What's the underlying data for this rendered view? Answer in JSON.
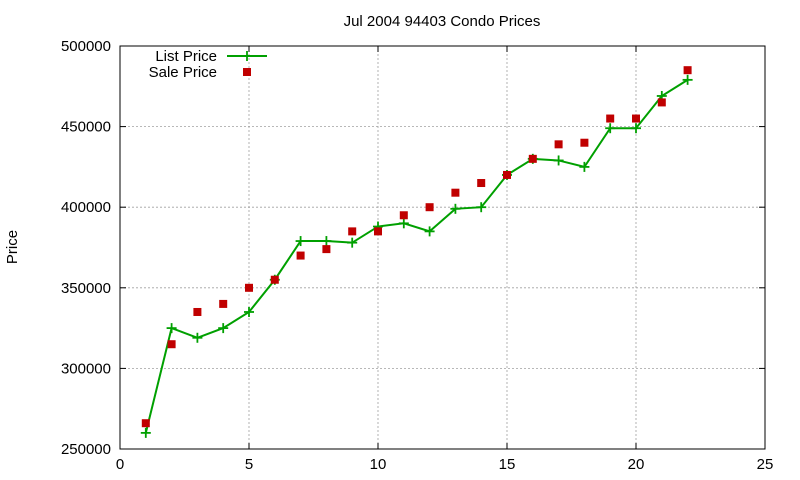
{
  "chart_data": {
    "type": "line",
    "title": "Jul 2004 94403 Condo Prices",
    "xlabel": "",
    "ylabel": "Price",
    "xlim": [
      0,
      25
    ],
    "ylim": [
      250000,
      500000
    ],
    "xticks": [
      0,
      5,
      10,
      15,
      20,
      25
    ],
    "yticks": [
      250000,
      300000,
      350000,
      400000,
      450000,
      500000
    ],
    "grid": true,
    "legend_position": "top-left",
    "series": [
      {
        "name": "List Price",
        "style": "line-cross",
        "color": "#00a000",
        "x": [
          1,
          2,
          3,
          4,
          5,
          6,
          7,
          8,
          9,
          10,
          11,
          12,
          13,
          14,
          15,
          16,
          17,
          18,
          19,
          20,
          21,
          22
        ],
        "y": [
          260000,
          325000,
          319000,
          325000,
          335000,
          355000,
          379000,
          379000,
          378000,
          388000,
          390000,
          385000,
          399000,
          400000,
          420000,
          430000,
          429000,
          425000,
          449000,
          449000,
          469000,
          479000
        ]
      },
      {
        "name": "Sale Price",
        "style": "square",
        "color": "#c00000",
        "x": [
          1,
          2,
          3,
          4,
          5,
          6,
          7,
          8,
          9,
          10,
          11,
          12,
          13,
          14,
          15,
          16,
          17,
          18,
          19,
          20,
          21,
          22
        ],
        "y": [
          266000,
          315000,
          335000,
          340000,
          350000,
          355000,
          370000,
          374000,
          385000,
          385000,
          395000,
          400000,
          409000,
          415000,
          420000,
          430000,
          439000,
          440000,
          455000,
          455000,
          465000,
          485000
        ]
      }
    ]
  }
}
